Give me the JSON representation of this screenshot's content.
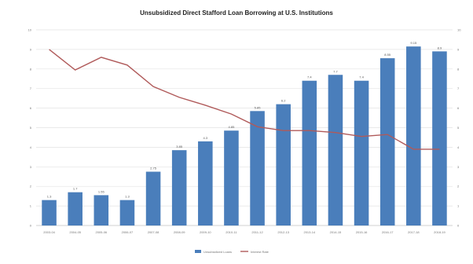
{
  "chart_data": {
    "type": "bar",
    "title": "Unsubsidized Direct Stafford Loan Borrowing at U.S. Institutions",
    "categories": [
      "2003-04",
      "2004-05",
      "2005-06",
      "2006-07",
      "2007-08",
      "2008-09",
      "2009-10",
      "2010-11",
      "2011-12",
      "2012-13",
      "2013-14",
      "2014-15",
      "2015-16",
      "2016-17",
      "2017-18",
      "2018-19"
    ],
    "series": [
      {
        "kind": "bar",
        "axis": "left",
        "color": "#4a7ebb",
        "values": [
          1.3,
          1.7,
          1.55,
          1.3,
          2.75,
          3.85,
          4.3,
          4.85,
          5.85,
          6.2,
          7.4,
          7.7,
          7.4,
          8.55,
          9.15,
          8.9
        ]
      },
      {
        "kind": "line",
        "axis": "right",
        "color": "#b05a5a",
        "values": [
          9.0,
          7.95,
          8.6,
          8.2,
          7.1,
          6.55,
          6.15,
          5.7,
          5.05,
          4.85,
          4.85,
          4.75,
          4.55,
          4.65,
          3.9,
          3.9
        ]
      }
    ],
    "ylim": [
      0,
      10
    ],
    "ylim_right": [
      0,
      10
    ],
    "yticks": [
      "0",
      "1",
      "2",
      "3",
      "4",
      "5",
      "6",
      "7",
      "8",
      "9",
      "10"
    ],
    "yticks_right": [
      "0",
      "1",
      "2",
      "3",
      "4",
      "5",
      "6",
      "7",
      "8",
      "9",
      "10"
    ],
    "grid": true,
    "legend_position": "bottom",
    "legend": [
      "Unsubsidized Loans",
      "Interest Rate"
    ],
    "source": ""
  }
}
